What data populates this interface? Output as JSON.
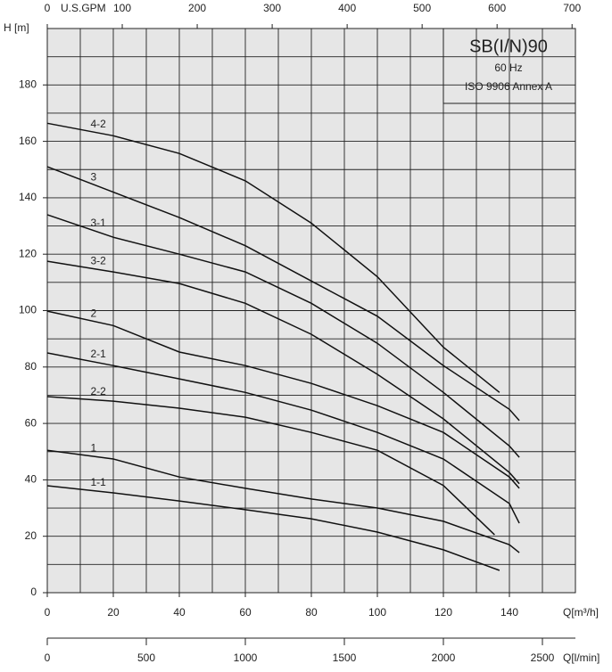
{
  "chart_data": {
    "type": "line",
    "ylabel": "H [m]",
    "xlabel": "Q[m³/h]",
    "x2label": "U.S.GPM",
    "x3label": "Q[l/min]",
    "info": [
      "SB(I/N)90",
      "60 Hz",
      "ISO 9906 Annex A"
    ],
    "xlim": [
      0,
      160
    ],
    "xticks": [
      0,
      20,
      40,
      60,
      80,
      100,
      120,
      140
    ],
    "xgrid_minor": [
      10,
      30,
      50,
      70,
      90,
      110,
      130,
      150
    ],
    "ylim": [
      0,
      200
    ],
    "yticks": [
      0,
      20,
      40,
      60,
      80,
      100,
      120,
      140,
      160,
      180
    ],
    "ygrid_minor": [
      10,
      30,
      50,
      70,
      90,
      110,
      130,
      150,
      170,
      190
    ],
    "x2lim": [
      0,
      704.5
    ],
    "x2ticks": [
      0,
      100,
      200,
      300,
      400,
      500,
      600,
      700
    ],
    "x3lim": [
      0,
      2666.7
    ],
    "x3ticks": [
      0,
      500,
      1000,
      1500,
      2000,
      2500
    ],
    "grid": true,
    "color": "#111111",
    "series": [
      {
        "name": "4-2",
        "x": [
          0,
          20,
          40,
          60,
          80,
          100,
          120,
          137
        ],
        "values": [
          166.4,
          162,
          155.7,
          146,
          131,
          112,
          87,
          71
        ]
      },
      {
        "name": "3",
        "x": [
          0,
          20,
          40,
          60,
          80,
          100,
          120,
          140,
          143
        ],
        "values": [
          151,
          142,
          133,
          123,
          110.5,
          98,
          80.5,
          65,
          61
        ]
      },
      {
        "name": "3-1",
        "x": [
          0,
          20,
          40,
          60,
          80,
          100,
          120,
          140,
          143
        ],
        "values": [
          134,
          126,
          120,
          113.7,
          102.6,
          88.4,
          71,
          52,
          48
        ]
      },
      {
        "name": "3-2",
        "x": [
          0,
          20,
          40,
          60,
          80,
          100,
          120,
          140,
          143
        ],
        "values": [
          117.5,
          113.7,
          109.6,
          102.6,
          91.6,
          77.4,
          61.6,
          42.6,
          38.6
        ]
      },
      {
        "name": "2",
        "x": [
          0,
          20,
          40,
          60,
          80,
          100,
          120,
          140,
          143
        ],
        "values": [
          99.8,
          94.7,
          85.3,
          80.5,
          74.2,
          66.3,
          56.8,
          41,
          37
        ]
      },
      {
        "name": "2-1",
        "x": [
          0,
          20,
          40,
          60,
          80,
          100,
          120,
          140,
          143
        ],
        "values": [
          85,
          80.5,
          75.8,
          71,
          64.7,
          56.8,
          47.4,
          31.6,
          24.6
        ]
      },
      {
        "name": "2-2",
        "x": [
          0,
          20,
          40,
          60,
          80,
          100,
          120,
          135.5
        ],
        "values": [
          69.5,
          67.9,
          65.4,
          62.2,
          56.8,
          50.5,
          38,
          20.5
        ]
      },
      {
        "name": "1",
        "x": [
          0,
          20,
          40,
          60,
          80,
          100,
          120,
          140,
          143
        ],
        "values": [
          50.5,
          47.4,
          41,
          37,
          33.2,
          30,
          25.3,
          17,
          14.2
        ]
      },
      {
        "name": "1-1",
        "x": [
          0,
          20,
          40,
          60,
          80,
          100,
          120,
          137
        ],
        "values": [
          37.9,
          35.4,
          32.5,
          29.4,
          26.2,
          21.5,
          15.2,
          7.9
        ]
      }
    ]
  }
}
